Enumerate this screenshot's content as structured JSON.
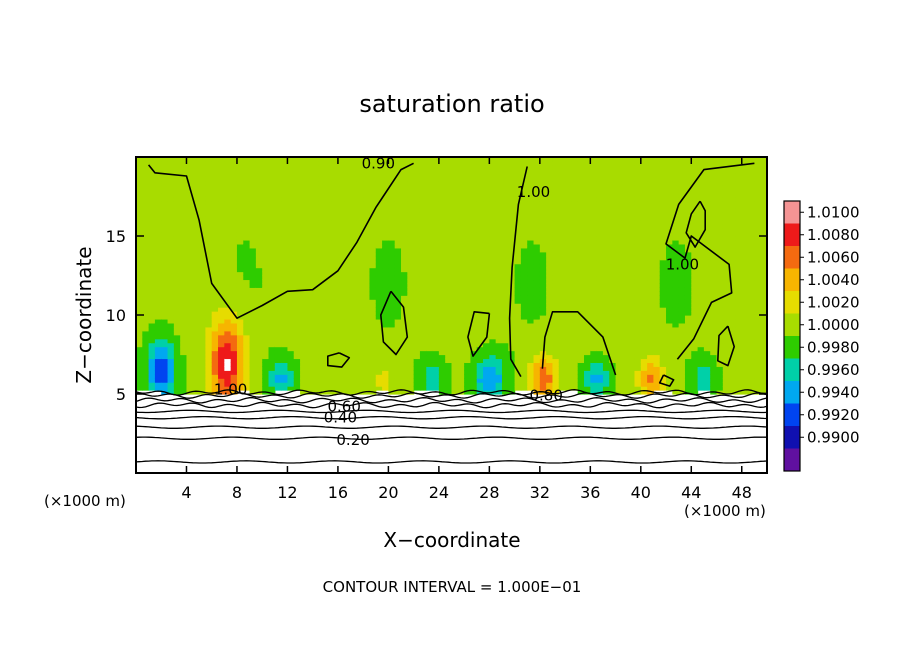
{
  "chart_data": {
    "type": "heatmap",
    "title": "saturation ratio",
    "xlabel": "X−coordinate",
    "ylabel": "Z−coordinate",
    "x_unit_label": "(×1000 m)",
    "y_unit_label": "(×1000 m)",
    "footer": "CONTOUR INTERVAL = 1.000E−01",
    "xlim": [
      0,
      50
    ],
    "ylim": [
      0,
      20
    ],
    "x_ticks": [
      4,
      8,
      12,
      16,
      20,
      24,
      28,
      32,
      36,
      40,
      44,
      48
    ],
    "y_ticks": [
      5,
      10,
      15
    ],
    "colorbar": {
      "levels": [
        "1.0100",
        "1.0080",
        "1.0060",
        "1.0040",
        "1.0020",
        "1.0000",
        "0.9980",
        "0.9960",
        "0.9940",
        "0.9920",
        "0.9900"
      ],
      "colors": [
        "#f49494",
        "#ee1a1a",
        "#f46a10",
        "#f7b500",
        "#e6dc00",
        "#a8dc00",
        "#2ecc00",
        "#00d0a8",
        "#00a8f0",
        "#0044f0",
        "#1010b0",
        "#6010a0"
      ]
    },
    "contour_labels": [
      {
        "text": "0.90",
        "x": 19.2,
        "y": 19.6
      },
      {
        "text": "1.00",
        "x": 31.5,
        "y": 17.8
      },
      {
        "text": "1.00",
        "x": 43.3,
        "y": 13.2
      },
      {
        "text": "1.00",
        "x": 7.5,
        "y": 5.3
      },
      {
        "text": "0.60",
        "x": 16.5,
        "y": 4.2
      },
      {
        "text": "0.40",
        "x": 16.2,
        "y": 3.5
      },
      {
        "text": "0.20",
        "x": 17.2,
        "y": 2.1
      },
      {
        "text": "0.80",
        "x": 32.5,
        "y": 4.9
      }
    ],
    "low_level_contours": [
      {
        "level": 0.1,
        "z": 0.7
      },
      {
        "level": 0.2,
        "z": 2.2
      },
      {
        "level": 0.3,
        "z": 2.9
      },
      {
        "level": 0.4,
        "z": 3.5
      },
      {
        "level": 0.5,
        "z": 3.9
      },
      {
        "level": 0.6,
        "z": 4.3
      },
      {
        "level": 0.7,
        "z": 4.6
      },
      {
        "level": 0.8,
        "z": 4.9
      },
      {
        "level": 0.9,
        "z": 5.1
      }
    ],
    "features": [
      {
        "kind": "supersaturated",
        "x": 7.2,
        "z": 7.0,
        "sx": 1.4,
        "sz": 2.8,
        "peak": 1.01
      },
      {
        "kind": "supersaturated",
        "x": 32.3,
        "z": 6.0,
        "sx": 1.1,
        "sz": 1.5,
        "peak": 1.007
      },
      {
        "kind": "supersaturated",
        "x": 40.8,
        "z": 6.0,
        "sx": 1.0,
        "sz": 1.4,
        "peak": 1.006
      },
      {
        "kind": "supersaturated",
        "x": 19.6,
        "z": 5.9,
        "sx": 0.8,
        "sz": 0.8,
        "peak": 1.003
      },
      {
        "kind": "subsaturated",
        "x": 2.0,
        "z": 6.5,
        "sx": 1.1,
        "sz": 2.0,
        "peak": 0.992
      },
      {
        "kind": "subsaturated",
        "x": 11.5,
        "z": 6.0,
        "sx": 1.0,
        "sz": 1.2,
        "peak": 0.995
      },
      {
        "kind": "subsaturated",
        "x": 23.5,
        "z": 6.0,
        "sx": 1.0,
        "sz": 1.2,
        "peak": 0.996
      },
      {
        "kind": "subsaturated",
        "x": 28.0,
        "z": 6.0,
        "sx": 1.2,
        "sz": 1.4,
        "peak": 0.9935
      },
      {
        "kind": "subsaturated",
        "x": 36.5,
        "z": 6.0,
        "sx": 1.0,
        "sz": 1.1,
        "peak": 0.995
      },
      {
        "kind": "subsaturated",
        "x": 45.0,
        "z": 6.0,
        "sx": 0.9,
        "sz": 1.1,
        "peak": 0.996
      }
    ]
  }
}
